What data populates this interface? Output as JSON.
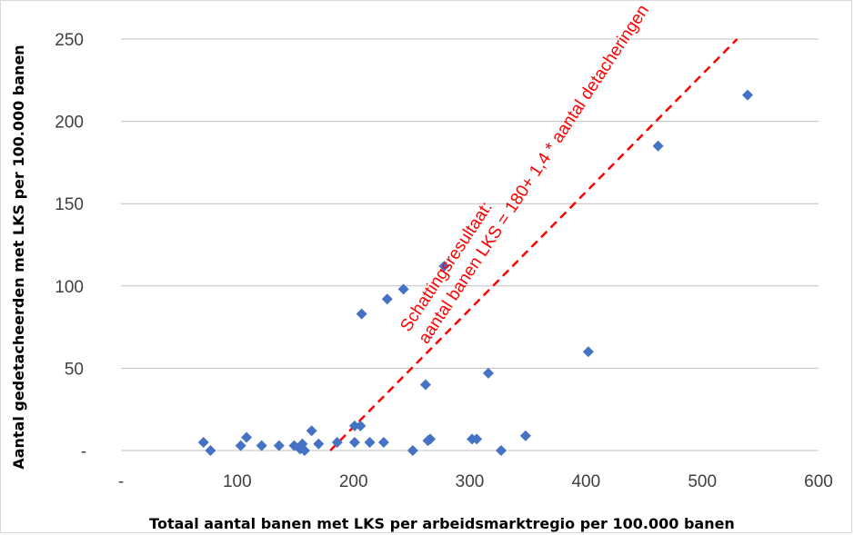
{
  "chart_data": {
    "type": "scatter",
    "title": "",
    "xlabel": "Totaal aantal banen met LKS per arbeidsmarktregio per 100.000 banen",
    "ylabel": "Aantal gedetacheerden met LKS per 100.000 banen",
    "xlim": [
      0,
      600
    ],
    "ylim": [
      0,
      250
    ],
    "x_ticks": [
      {
        "value": 0,
        "label": "-"
      },
      {
        "value": 100,
        "label": "100"
      },
      {
        "value": 200,
        "label": "200"
      },
      {
        "value": 300,
        "label": "300"
      },
      {
        "value": 400,
        "label": "400"
      },
      {
        "value": 500,
        "label": "500"
      },
      {
        "value": 600,
        "label": "600"
      }
    ],
    "y_ticks": [
      {
        "value": 0,
        "label": "-"
      },
      {
        "value": 50,
        "label": "50"
      },
      {
        "value": 100,
        "label": "100"
      },
      {
        "value": 150,
        "label": "150"
      },
      {
        "value": 200,
        "label": "200"
      },
      {
        "value": 250,
        "label": "250"
      }
    ],
    "grid": {
      "horizontal": true,
      "vertical": false
    },
    "legend": "none",
    "marker_color": "#4472c4",
    "trend_color": "#ff0000",
    "series": [
      {
        "points": [
          {
            "x": 71,
            "y": 5
          },
          {
            "x": 77,
            "y": 0
          },
          {
            "x": 103,
            "y": 3
          },
          {
            "x": 108,
            "y": 8
          },
          {
            "x": 121,
            "y": 3
          },
          {
            "x": 136,
            "y": 3
          },
          {
            "x": 149,
            "y": 3
          },
          {
            "x": 154,
            "y": 1
          },
          {
            "x": 156,
            "y": 4
          },
          {
            "x": 158,
            "y": 0
          },
          {
            "x": 164,
            "y": 12
          },
          {
            "x": 170,
            "y": 4
          },
          {
            "x": 186,
            "y": 5
          },
          {
            "x": 201,
            "y": 5
          },
          {
            "x": 201,
            "y": 15
          },
          {
            "x": 206,
            "y": 15
          },
          {
            "x": 207,
            "y": 83
          },
          {
            "x": 214,
            "y": 5
          },
          {
            "x": 226,
            "y": 5
          },
          {
            "x": 229,
            "y": 92
          },
          {
            "x": 243,
            "y": 98
          },
          {
            "x": 251,
            "y": 0
          },
          {
            "x": 262,
            "y": 40
          },
          {
            "x": 264,
            "y": 6
          },
          {
            "x": 266,
            "y": 7
          },
          {
            "x": 278,
            "y": 112
          },
          {
            "x": 302,
            "y": 7
          },
          {
            "x": 306,
            "y": 7
          },
          {
            "x": 316,
            "y": 47
          },
          {
            "x": 327,
            "y": 0
          },
          {
            "x": 348,
            "y": 9
          },
          {
            "x": 402,
            "y": 60
          },
          {
            "x": 462,
            "y": 185
          },
          {
            "x": 539,
            "y": 216
          }
        ]
      }
    ],
    "trend_line": {
      "intercept": 180,
      "slope": 1.4,
      "x_start": 0,
      "x_end": 250,
      "style": "dashed"
    },
    "annotations": [
      "Schattingsresultaat:",
      "aantal banen LKS = 180+ 1,4 * aantal detacheringen"
    ]
  }
}
